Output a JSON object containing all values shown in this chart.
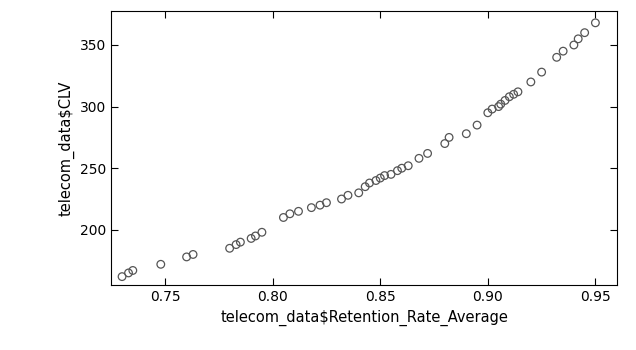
{
  "x": [
    0.73,
    0.733,
    0.735,
    0.748,
    0.76,
    0.763,
    0.78,
    0.783,
    0.785,
    0.79,
    0.792,
    0.795,
    0.805,
    0.808,
    0.812,
    0.818,
    0.822,
    0.825,
    0.832,
    0.835,
    0.84,
    0.843,
    0.845,
    0.848,
    0.85,
    0.852,
    0.855,
    0.858,
    0.86,
    0.863,
    0.868,
    0.872,
    0.88,
    0.882,
    0.89,
    0.895,
    0.9,
    0.902,
    0.905,
    0.906,
    0.908,
    0.91,
    0.912,
    0.914,
    0.92,
    0.925,
    0.932,
    0.935,
    0.94,
    0.942,
    0.945,
    0.95
  ],
  "y": [
    162,
    165,
    167,
    172,
    178,
    180,
    185,
    188,
    190,
    193,
    195,
    198,
    210,
    213,
    215,
    218,
    220,
    222,
    225,
    228,
    230,
    235,
    238,
    240,
    242,
    244,
    245,
    248,
    250,
    252,
    258,
    262,
    270,
    275,
    278,
    285,
    295,
    298,
    300,
    302,
    305,
    308,
    310,
    312,
    320,
    328,
    340,
    345,
    350,
    355,
    360,
    368
  ],
  "xlabel": "telecom_data$Retention_Rate_Average",
  "ylabel": "telecom_data$CLV",
  "xlim": [
    0.725,
    0.96
  ],
  "ylim": [
    155,
    378
  ],
  "xticks": [
    0.75,
    0.8,
    0.85,
    0.9,
    0.95
  ],
  "yticks": [
    200,
    250,
    300,
    350
  ],
  "bg_color": "#ffffff",
  "panel_color": "#ffffff",
  "marker_facecolor": "none",
  "marker_edge_color": "#555555",
  "marker_size": 5.5,
  "marker_linewidth": 0.9,
  "label_fontsize": 10.5,
  "tick_fontsize": 10
}
